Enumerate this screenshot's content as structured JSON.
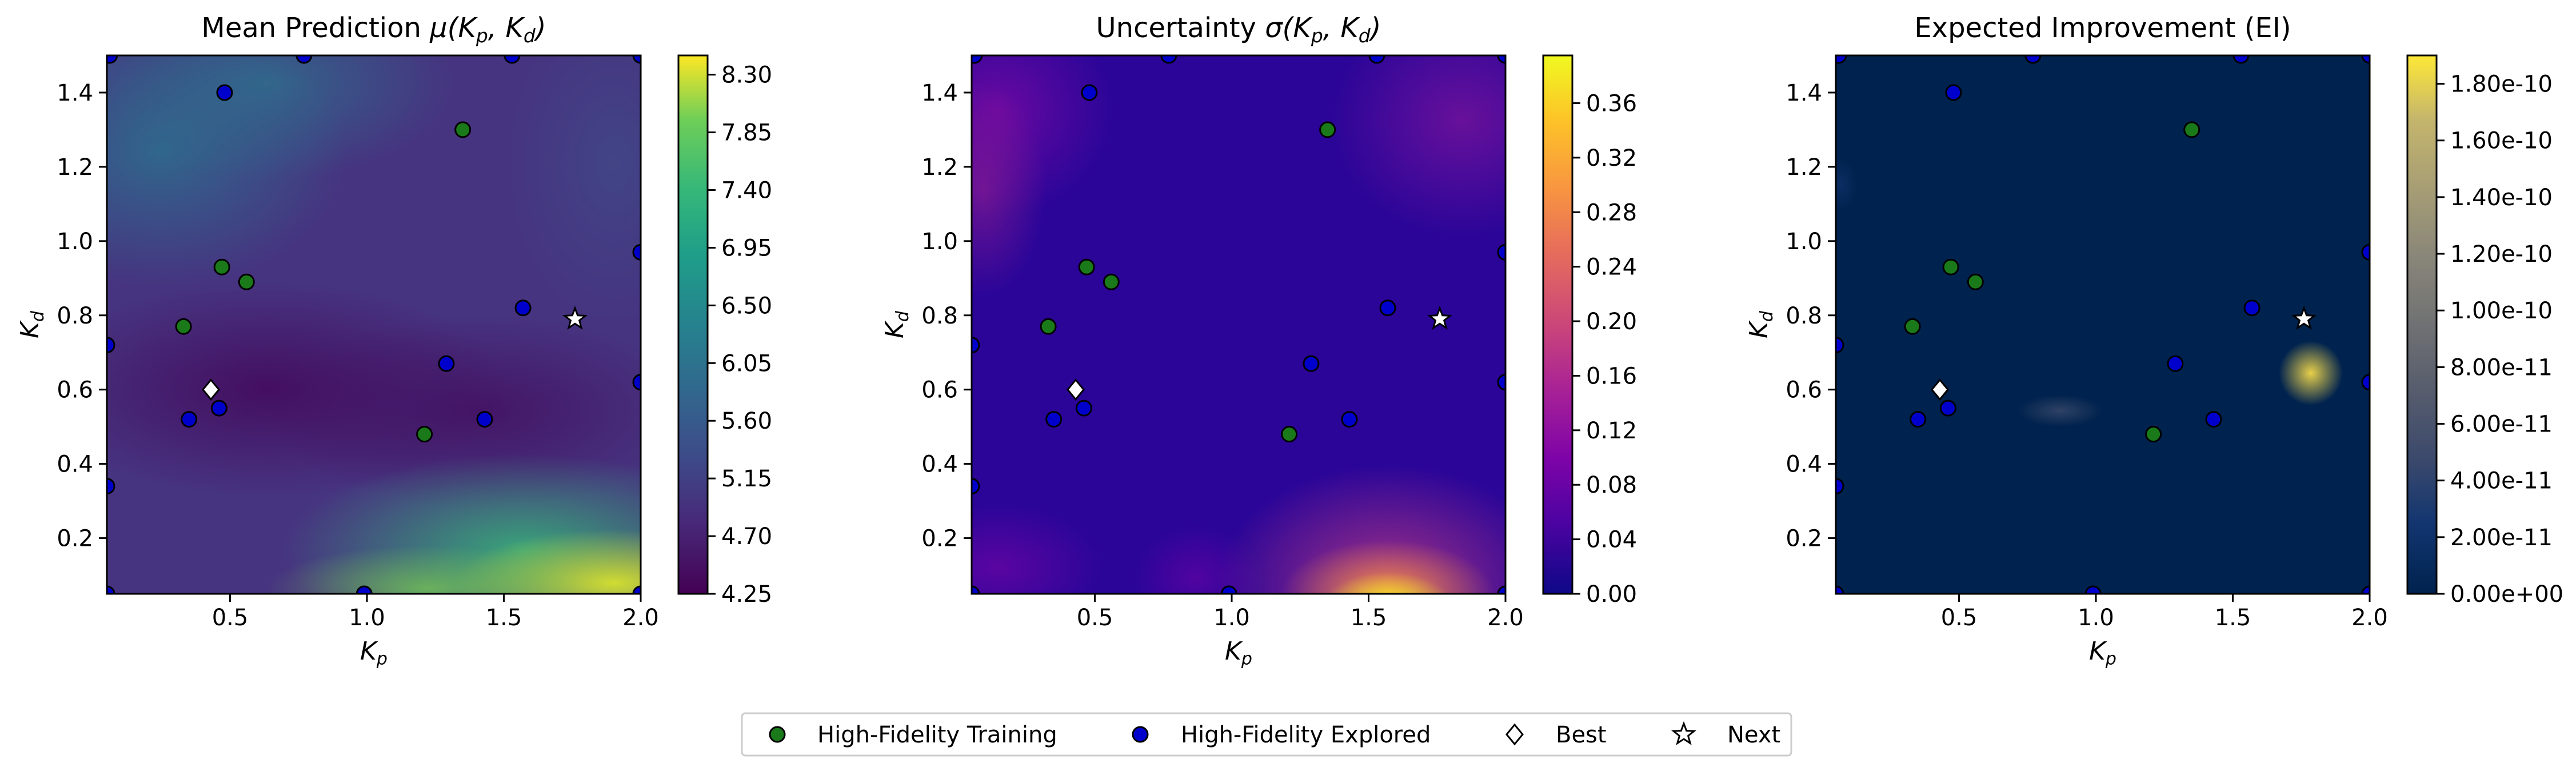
{
  "chart_data": [
    {
      "type": "heatmap",
      "title": "Mean Prediction μ(K_p, K_d)",
      "xlabel": "K_p",
      "ylabel": "K_d",
      "xlim": [
        0.05,
        2.0
      ],
      "ylim": [
        0.05,
        1.5
      ],
      "x_ticks": [
        "0.5",
        "1.0",
        "1.5",
        "2.0"
      ],
      "y_ticks": [
        "0.2",
        "0.4",
        "0.6",
        "0.8",
        "1.0",
        "1.2",
        "1.4"
      ],
      "colormap": "viridis",
      "colorbar_range": [
        4.25,
        8.45
      ],
      "colorbar_ticks": [
        "4.25",
        "4.70",
        "5.15",
        "5.60",
        "6.05",
        "6.50",
        "6.95",
        "7.40",
        "7.85",
        "8.30"
      ],
      "description": "Low values (~4.3) over a broad band around K_d 0.5-0.7; rising to ~8.4 at high K_p, low K_d corner"
    },
    {
      "type": "heatmap",
      "title": "Uncertainty σ(K_p, K_d)",
      "xlabel": "K_p",
      "ylabel": "K_d",
      "xlim": [
        0.05,
        2.0
      ],
      "ylim": [
        0.05,
        1.5
      ],
      "x_ticks": [
        "0.5",
        "1.0",
        "1.5",
        "2.0"
      ],
      "y_ticks": [
        "0.2",
        "0.4",
        "0.6",
        "0.8",
        "1.0",
        "1.2",
        "1.4"
      ],
      "colormap": "plasma",
      "colorbar_range": [
        0.0,
        0.395
      ],
      "colorbar_ticks": [
        "0.00",
        "0.04",
        "0.08",
        "0.12",
        "0.16",
        "0.20",
        "0.24",
        "0.28",
        "0.32",
        "0.36"
      ],
      "description": "Near zero close to samples; peak ~0.39 at bottom around K_p 1.5; moderate at left edge and upper right"
    },
    {
      "type": "heatmap",
      "title": "Expected Improvement (EI)",
      "xlabel": "K_p",
      "ylabel": "K_d",
      "xlim": [
        0.05,
        2.0
      ],
      "ylim": [
        0.05,
        1.5
      ],
      "x_ticks": [
        "0.5",
        "1.0",
        "1.5",
        "2.0"
      ],
      "y_ticks": [
        "0.2",
        "0.4",
        "0.6",
        "0.8",
        "1.0",
        "1.2",
        "1.4"
      ],
      "colormap": "cividis",
      "colorbar_range": [
        0.0,
        1.9e-10
      ],
      "colorbar_ticks": [
        "0.00e+00",
        "2.00e-11",
        "4.00e-11",
        "6.00e-11",
        "8.00e-11",
        "1.00e-10",
        "1.20e-10",
        "1.40e-10",
        "1.60e-10",
        "1.80e-10"
      ],
      "description": "Essentially zero everywhere; bright spot ~1.9e-10 near (1.76, 0.68); faint spot near (0.85, 0.58)"
    }
  ],
  "points": {
    "high_fidelity_training": [
      [
        0.33,
        0.77
      ],
      [
        0.47,
        0.93
      ],
      [
        0.56,
        0.89
      ],
      [
        1.21,
        0.48
      ],
      [
        1.35,
        1.3
      ]
    ],
    "high_fidelity_explored": [
      [
        0.48,
        1.4
      ],
      [
        0.05,
        0.72
      ],
      [
        0.35,
        0.52
      ],
      [
        0.46,
        0.55
      ],
      [
        1.29,
        0.67
      ],
      [
        1.43,
        0.52
      ],
      [
        1.57,
        0.82
      ],
      [
        2.0,
        0.97
      ],
      [
        2.0,
        0.62
      ],
      [
        0.05,
        0.34
      ],
      [
        0.99,
        0.05
      ],
      [
        2.0,
        0.05
      ],
      [
        0.05,
        0.05
      ],
      [
        0.06,
        1.5
      ],
      [
        0.77,
        1.5
      ],
      [
        1.53,
        1.5
      ],
      [
        2.0,
        1.5
      ]
    ],
    "best": [
      0.43,
      0.6
    ],
    "next": [
      1.76,
      0.79
    ]
  },
  "legend": {
    "placement": "bottom-center",
    "items": [
      {
        "label": "High-Fidelity Training",
        "marker": "circle",
        "color": "#1a7a1a"
      },
      {
        "label": "High-Fidelity Explored",
        "marker": "circle",
        "color": "#0000cc"
      },
      {
        "label": "Best",
        "marker": "diamond",
        "color": "#ffffff"
      },
      {
        "label": "Next",
        "marker": "star",
        "color": "#ffffff"
      }
    ]
  }
}
